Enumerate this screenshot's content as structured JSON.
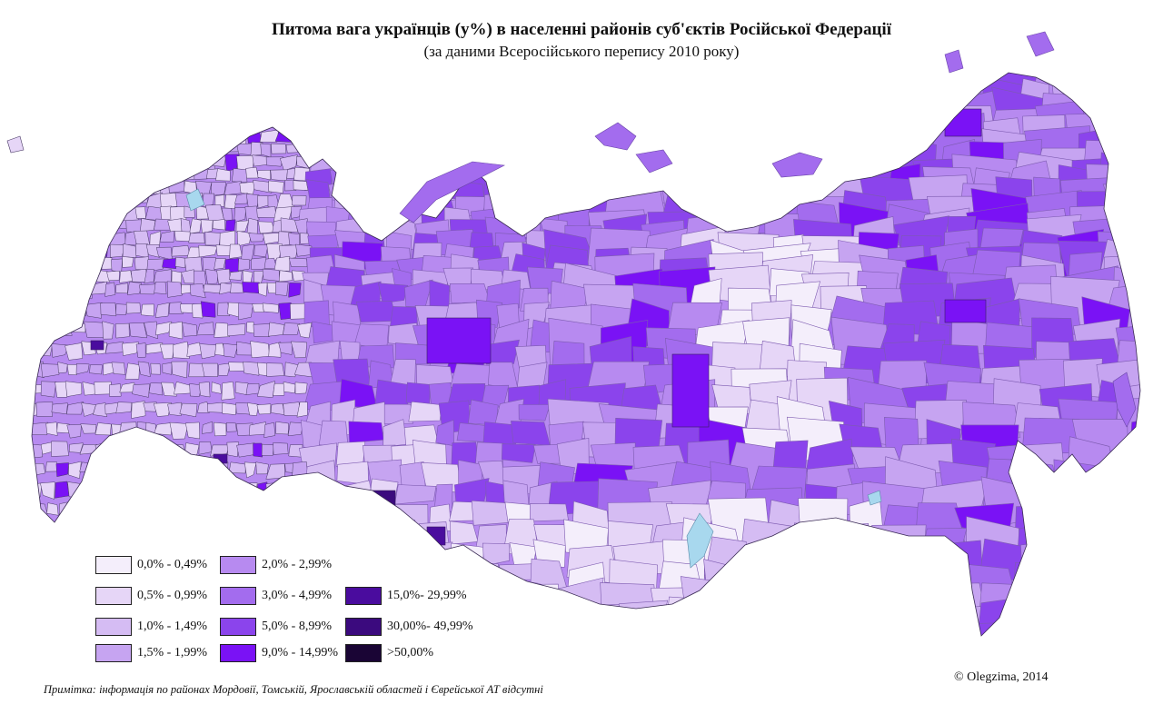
{
  "title": "Питома вага українців (у%) в населенні районів суб'єктів Російської Федерації",
  "subtitle": "(за даними Всеросійського перепису 2010 року)",
  "legend": [
    {
      "label": "0,0% - 0,49%",
      "color": "#f4eefb"
    },
    {
      "label": "0,5% - 0,99%",
      "color": "#e6d6f7"
    },
    {
      "label": "1,0% - 1,49%",
      "color": "#d5bcf3"
    },
    {
      "label": "1,5% - 1,99%",
      "color": "#c6a4f1"
    },
    {
      "label": "2,0% - 2,99%",
      "color": "#b78af0"
    },
    {
      "label": "3,0% - 4,99%",
      "color": "#a36cee"
    },
    {
      "label": "5,0% - 8,99%",
      "color": "#8b44ec"
    },
    {
      "label": "9,0% - 14,99%",
      "color": "#7a12f5"
    },
    {
      "label": "15,0%- 29,99%",
      "color": "#4a0c9e"
    },
    {
      "label": "30,00%- 49,99%",
      "color": "#3b0a7e"
    },
    {
      "label": ">50,00%",
      "color": "#1a0535"
    }
  ],
  "note": "Примітка: інформація по районах Мордовії, Томській, Ярославській областей і Єврейської АТ відсутні",
  "credit": "© Olegzima, 2014"
}
